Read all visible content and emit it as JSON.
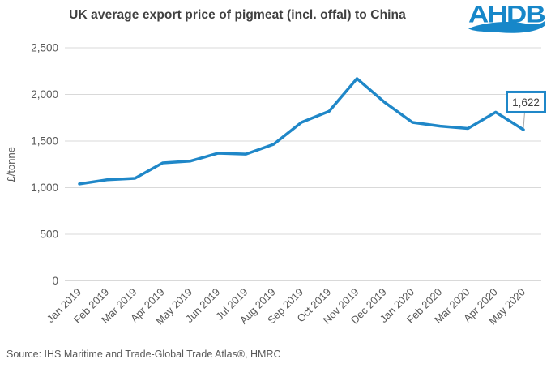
{
  "header": {
    "title": "UK average export price of pigmeat (incl. offal) to China",
    "logo_text": "AHDB"
  },
  "chart_data": {
    "type": "line",
    "title": "UK average export price of pigmeat (incl. offal) to China",
    "xlabel": "",
    "ylabel": "£/tonne",
    "ylim": [
      0,
      2500
    ],
    "yticks": [
      0,
      500,
      1000,
      1500,
      2000,
      2500
    ],
    "grid": true,
    "legend_position": "none",
    "categories": [
      "Jan 2019",
      "Feb 2019",
      "Mar 2019",
      "Apr 2019",
      "May 2019",
      "Jun 2019",
      "Jul 2019",
      "Aug 2019",
      "Sep 2019",
      "Oct 2019",
      "Nov 2019",
      "Dec 2019",
      "Jan 2020",
      "Feb 2020",
      "Mar 2020",
      "Apr 2020",
      "May 2020"
    ],
    "series": [
      {
        "name": "UK average export price of pigmeat to China",
        "values": [
          1040,
          1085,
          1100,
          1265,
          1285,
          1370,
          1360,
          1465,
          1700,
          1820,
          2170,
          1915,
          1700,
          1660,
          1635,
          1810,
          1622
        ]
      }
    ],
    "annotation": {
      "label": "1,622",
      "category": "May 2020",
      "value": 1622
    }
  },
  "footer": {
    "source": "Source: IHS Maritime and Trade-Global Trade Atlas®, HMRC"
  },
  "colors": {
    "line": "#1f87c8",
    "annotation_border": "#1f87c8",
    "annotation_text": "#404040",
    "leader_line": "#a6a6a6",
    "logo_blue": "#1787c9",
    "title_text": "#404040",
    "axis_text": "#595959",
    "source_text": "#595959",
    "gridline": "#d9d9d9"
  }
}
